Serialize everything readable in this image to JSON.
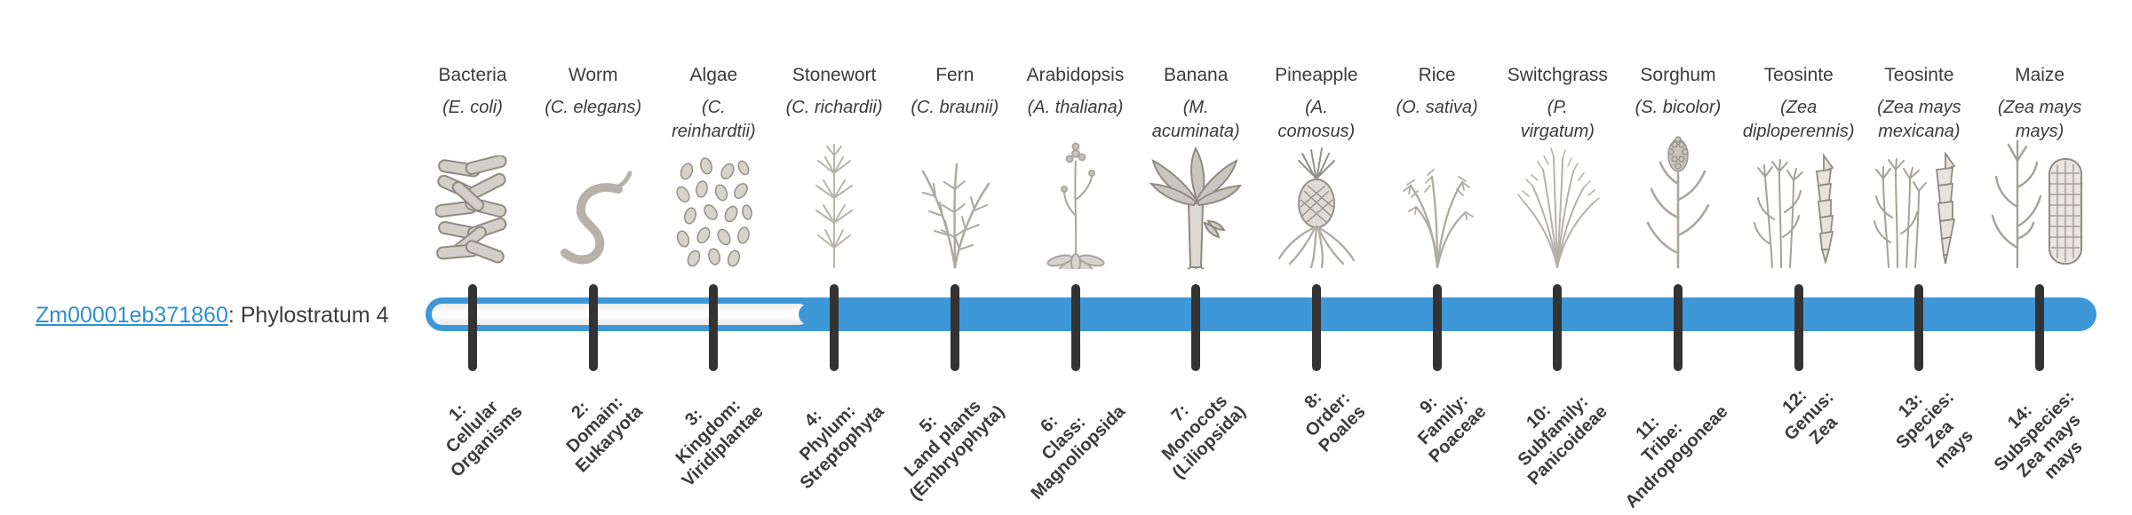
{
  "gene": {
    "id": "Zm00001eb371860",
    "suffix": ": Phylostratum 4",
    "stratum": 4
  },
  "bar": {
    "fill_color": "#3E98D8",
    "tick_color": "#333333",
    "link_color": "#2E8FD0",
    "filled_from_stratum": 4,
    "filled_to_stratum": 14
  },
  "phylostrata": [
    {
      "number": 1,
      "organism": "Bacteria",
      "species": "(E. coli)",
      "label": "1:\nCellular\nOrganisms",
      "icon": "bacteria-icon"
    },
    {
      "number": 2,
      "organism": "Worm",
      "species": "(C. elegans)",
      "label": "2:\nDomain:\nEukaryota",
      "icon": "worm-icon"
    },
    {
      "number": 3,
      "organism": "Algae",
      "species": "(C.\nreinhardtii)",
      "label": "3:\nKingdom:\nViridiplantae",
      "icon": "algae-icon"
    },
    {
      "number": 4,
      "organism": "Stonewort",
      "species": "(C. richardii)",
      "label": "4:\nPhylum:\nStreptophyta",
      "icon": "stonewort-icon"
    },
    {
      "number": 5,
      "organism": "Fern",
      "species": "(C. braunii)",
      "label": "5:\nLand plants\n(Embryophyta)",
      "icon": "fern-icon"
    },
    {
      "number": 6,
      "organism": "Arabidopsis",
      "species": "(A. thaliana)",
      "label": "6:\nClass:\nMagnoliopsida",
      "icon": "arabidopsis-icon"
    },
    {
      "number": 7,
      "organism": "Banana",
      "species": "(M.\nacuminata)",
      "label": "7:\nMonocots\n(Liliopsida)",
      "icon": "banana-icon"
    },
    {
      "number": 8,
      "organism": "Pineapple",
      "species": "(A.\ncomosus)",
      "label": "8:\nOrder:\nPoales",
      "icon": "pineapple-icon"
    },
    {
      "number": 9,
      "organism": "Rice",
      "species": "(O. sativa)",
      "label": "9:\nFamily:\nPoaceae",
      "icon": "rice-icon"
    },
    {
      "number": 10,
      "organism": "Switchgrass",
      "species": "(P.\nvirgatum)",
      "label": "10:\nSubfamily:\nPanicoideae",
      "icon": "switchgrass-icon"
    },
    {
      "number": 11,
      "organism": "Sorghum",
      "species": "(S. bicolor)",
      "label": "11:\nTribe:\nAndropogoneae",
      "icon": "sorghum-icon"
    },
    {
      "number": 12,
      "organism": "Teosinte",
      "species": "(Zea\ndiploperennis)",
      "label": "12:\nGenus:\nZea",
      "icon": "teosinte-diploperennis-icon"
    },
    {
      "number": 13,
      "organism": "Teosinte",
      "species": "(Zea mays\nmexicana)",
      "label": "13:\nSpecies:\nZea\nmays",
      "icon": "teosinte-mexicana-icon"
    },
    {
      "number": 14,
      "organism": "Maize",
      "species": "(Zea mays\nmays)",
      "label": "14:\nSubspecies:\nZea mays\nmays",
      "icon": "maize-icon"
    }
  ]
}
